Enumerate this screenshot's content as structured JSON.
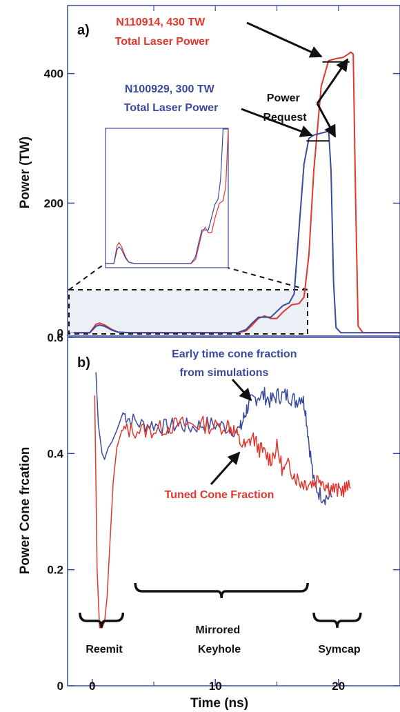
{
  "chart_data": [
    {
      "type": "line",
      "panel_label": "a)",
      "xlabel": "",
      "ylabel": "Power (TW)",
      "xlim": [
        -2,
        25
      ],
      "ylim": [
        -5,
        505
      ],
      "y_ticks": [
        0,
        200,
        400
      ],
      "y_tick_labels": [
        "0",
        "200",
        "400"
      ],
      "colors": {
        "N110914": "#e0362d",
        "N100929": "#3a4a9a",
        "request": "#111111"
      },
      "series": [
        {
          "name": "N110914, 430 TW",
          "sub_label": "Total Laser Power",
          "color": "#e0362d",
          "x": [
            -1.5,
            -0.2,
            0.3,
            0.6,
            1.0,
            1.6,
            2.1,
            3.0,
            5.0,
            8.0,
            10.5,
            11.8,
            12.5,
            13.0,
            13.5,
            14.0,
            14.5,
            15.0,
            15.5,
            16.2,
            16.8,
            17.2,
            17.6,
            18.0,
            18.6,
            19.2,
            19.8,
            20.4,
            20.8,
            21.0,
            21.2,
            21.4,
            21.6,
            22.0,
            25.0
          ],
          "y": [
            0,
            0,
            13,
            15,
            12,
            5,
            1,
            0,
            0,
            0,
            0,
            0,
            3,
            12,
            22,
            26,
            22,
            22,
            32,
            43,
            45,
            55,
            120,
            250,
            380,
            420,
            423,
            425,
            430,
            433,
            430,
            200,
            10,
            0,
            0
          ]
        },
        {
          "name": "N100929, 300 TW",
          "sub_label": "Total Laser Power",
          "color": "#3a4a9a",
          "x": [
            -1.5,
            -0.2,
            0.3,
            0.6,
            1.0,
            1.6,
            2.1,
            3.0,
            5.0,
            8.0,
            10.5,
            11.8,
            12.5,
            13.0,
            13.5,
            14.0,
            14.5,
            15.0,
            15.5,
            16.0,
            16.4,
            16.8,
            17.2,
            17.6,
            18.0,
            18.6,
            19.0,
            19.2,
            19.4,
            19.6,
            19.8,
            20.2,
            25.0
          ],
          "y": [
            0,
            0,
            10,
            12,
            10,
            4,
            1,
            0,
            0,
            0,
            0,
            0,
            5,
            15,
            24,
            24,
            24,
            33,
            42,
            46,
            60,
            160,
            260,
            300,
            305,
            308,
            310,
            312,
            250,
            80,
            8,
            0,
            0
          ]
        },
        {
          "name": "Power Request",
          "color": "#111111",
          "x": [
            17.4,
            17.5,
            19.2,
            19.3
          ],
          "y": [
            null,
            296,
            296,
            null
          ],
          "segments": [
            {
              "x": [
                17.4,
                19.25
              ],
              "y": [
                296,
                296
              ]
            },
            {
              "x": [
                18.7,
                20.9
              ],
              "y": [
                418,
                418
              ]
            }
          ]
        }
      ],
      "annotations": [
        {
          "text_lines": [
            "N110914, 430 TW",
            "Total Laser Power"
          ],
          "color": "#e0362d"
        },
        {
          "text_lines": [
            "N100929, 300 TW",
            "Total Laser Power"
          ],
          "color": "#3a4a9a"
        },
        {
          "text_lines": [
            "Power",
            "Request"
          ],
          "color": "#111111"
        }
      ]
    },
    {
      "type": "line",
      "panel_label": "b)",
      "xlabel": "Time (ns)",
      "ylabel": "Power Cone frcation",
      "xlim": [
        -2,
        25
      ],
      "ylim": [
        0,
        0.6
      ],
      "x_ticks": [
        0,
        10,
        20
      ],
      "x_tick_labels": [
        "0",
        "10",
        "20"
      ],
      "y_ticks": [
        0,
        0.2,
        0.4,
        0.6
      ],
      "y_tick_labels": [
        "0",
        "0.2",
        "0.4",
        "0.6"
      ],
      "series": [
        {
          "name": "Early time cone fraction from simulations",
          "color": "#3a4a9a",
          "x": [
            0.3,
            0.5,
            0.8,
            1.0,
            1.3,
            1.6,
            2.0,
            2.5,
            3.0,
            4.0,
            5.0,
            6.0,
            7.0,
            8.0,
            9.0,
            10.0,
            11.0,
            12.0,
            12.3,
            12.6,
            13.0,
            13.5,
            14.0,
            14.5,
            15.0,
            15.5,
            16.0,
            16.5,
            17.0,
            17.3,
            17.6,
            18.0,
            18.5,
            19.0,
            19.5
          ],
          "y": [
            0.54,
            0.45,
            0.4,
            0.39,
            0.41,
            0.42,
            0.44,
            0.47,
            0.46,
            0.45,
            0.45,
            0.445,
            0.45,
            0.445,
            0.45,
            0.45,
            0.445,
            0.44,
            0.46,
            0.48,
            0.49,
            0.5,
            0.5,
            0.49,
            0.5,
            0.5,
            0.5,
            0.49,
            0.5,
            0.48,
            0.42,
            0.35,
            0.33,
            0.325,
            0.325
          ]
        },
        {
          "name": "Tuned Cone Fraction",
          "color": "#e0362d",
          "x": [
            0.2,
            0.4,
            0.6,
            0.8,
            1.0,
            1.2,
            1.4,
            1.7,
            2.0,
            2.4,
            3.0,
            4.0,
            5.0,
            6.0,
            7.0,
            8.0,
            9.0,
            10.0,
            11.0,
            11.5,
            12.0,
            12.5,
            13.0,
            13.5,
            14.0,
            14.5,
            15.0,
            15.5,
            16.0,
            16.5,
            17.0,
            17.5,
            18.0,
            18.5,
            19.0,
            19.5,
            20.0,
            20.5,
            21.0
          ],
          "y": [
            0.5,
            0.2,
            0.1,
            0.1,
            0.11,
            0.15,
            0.23,
            0.35,
            0.41,
            0.44,
            0.44,
            0.44,
            0.44,
            0.445,
            0.45,
            0.45,
            0.45,
            0.445,
            0.45,
            0.44,
            0.42,
            0.41,
            0.43,
            0.41,
            0.4,
            0.39,
            0.41,
            0.37,
            0.38,
            0.36,
            0.35,
            0.35,
            0.35,
            0.36,
            0.345,
            0.34,
            0.335,
            0.34,
            0.34
          ]
        }
      ],
      "annotations": [
        {
          "text_lines": [
            "Early time cone fraction",
            "from simulations"
          ],
          "color": "#3a4a9a"
        },
        {
          "text_lines": [
            "Tuned Cone Fraction"
          ],
          "color": "#e0362d"
        }
      ],
      "regions": [
        {
          "text_lines": [
            "Reemit"
          ],
          "x_range": [
            -1.0,
            2.5
          ]
        },
        {
          "text_lines": [
            "Mirrored",
            "Keyhole"
          ],
          "x_range": [
            3.5,
            17.5
          ]
        },
        {
          "text_lines": [
            "Symcap"
          ],
          "x_range": [
            18.0,
            21.8
          ]
        }
      ]
    }
  ]
}
